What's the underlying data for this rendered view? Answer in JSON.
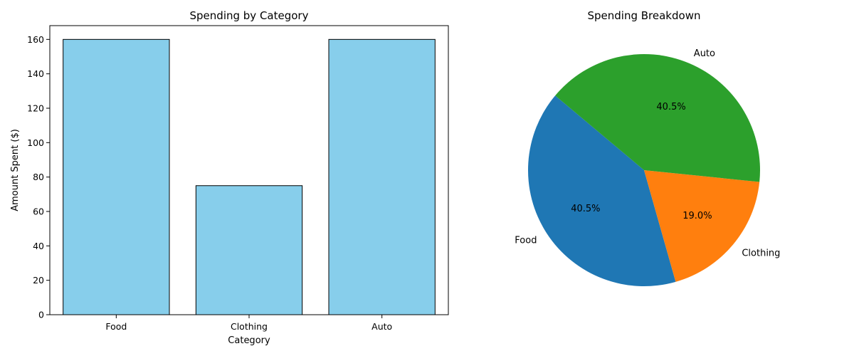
{
  "chart_data": [
    {
      "type": "bar",
      "title": "Spending by Category",
      "xlabel": "Category",
      "ylabel": "Amount Spent ($)",
      "categories": [
        "Food",
        "Clothing",
        "Auto"
      ],
      "values": [
        160,
        75,
        160
      ],
      "ylim": [
        0,
        168
      ],
      "yticks": [
        0,
        20,
        40,
        60,
        80,
        100,
        120,
        140,
        160
      ],
      "bar_color": "#87ceeb",
      "edge_color": "#000000",
      "grid": false
    },
    {
      "type": "pie",
      "title": "Spending Breakdown",
      "labels": [
        "Food",
        "Clothing",
        "Auto"
      ],
      "values": [
        160,
        75,
        160
      ],
      "percent_labels": [
        "40.5%",
        "19.0%",
        "40.5%"
      ],
      "colors": [
        "#1f77b4",
        "#ff7f0e",
        "#2ca02c"
      ],
      "start_angle_deg": 140
    }
  ]
}
